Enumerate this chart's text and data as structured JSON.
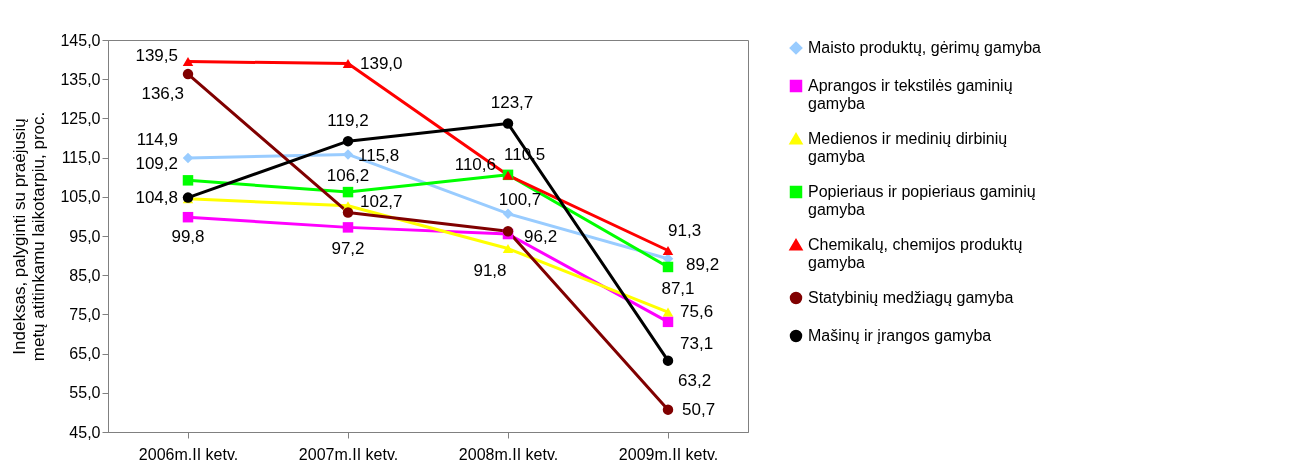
{
  "chart_data": {
    "type": "line",
    "ylabel": "Indeksas, palyginti su praėjusių metų atitinkamu laikotarpiu, proc.",
    "categories": [
      "2006m.II ketv.",
      "2007m.II ketv.",
      "2008m.II ketv.",
      "2009m.II ketv."
    ],
    "ylim": [
      45,
      145
    ],
    "yticks": [
      {
        "value": 45,
        "label": "45,0"
      },
      {
        "value": 55,
        "label": "55,0"
      },
      {
        "value": 65,
        "label": "65,0"
      },
      {
        "value": 75,
        "label": "75,0"
      },
      {
        "value": 85,
        "label": "85,0"
      },
      {
        "value": 95,
        "label": "95,0"
      },
      {
        "value": 105,
        "label": "105,0"
      },
      {
        "value": 115,
        "label": "115,0"
      },
      {
        "value": 125,
        "label": "125,0"
      },
      {
        "value": 135,
        "label": "135,0"
      },
      {
        "value": 145,
        "label": "145,0"
      }
    ],
    "grid": false,
    "legend": "right",
    "series": [
      {
        "name": "Maisto produktų, gėrimų gamyba",
        "color": "#99ccff",
        "marker": "diamond",
        "values": [
          114.9,
          115.8,
          100.7,
          89.2
        ],
        "value_labels": [
          "114,9",
          "115,8",
          "100,7",
          "89,2"
        ]
      },
      {
        "name": "Aprangos ir tekstilės gaminių gamyba",
        "color": "#ff00ff",
        "marker": "square",
        "values": [
          99.8,
          97.2,
          95.5,
          73.1
        ],
        "value_labels": [
          "99,8",
          "97,2",
          null,
          "73,1"
        ]
      },
      {
        "name": "Medienos ir medinių dirbinių gamyba",
        "color": "#ffff00",
        "marker": "triangle",
        "values": [
          104.5,
          102.7,
          91.8,
          75.6
        ],
        "value_labels": [
          null,
          "102,7",
          "91,8",
          "75,6"
        ]
      },
      {
        "name": "Popieriaus ir popieriaus gaminių gamyba",
        "color": "#00ff00",
        "marker": "square",
        "values": [
          109.2,
          106.2,
          110.6,
          87.1
        ],
        "value_labels": [
          "109,2",
          "106,2",
          "110,6",
          "87,1"
        ]
      },
      {
        "name": "Chemikalų, chemijos produktų gamyba",
        "color": "#ff0000",
        "marker": "triangle",
        "values": [
          139.5,
          139.0,
          110.5,
          91.3
        ],
        "value_labels": [
          "139,5",
          "139,0",
          "110,5",
          "91,3"
        ]
      },
      {
        "name": "Statybinių medžiagų gamyba",
        "color": "#800000",
        "marker": "circle",
        "values": [
          136.3,
          101.0,
          96.2,
          50.7
        ],
        "value_labels": [
          "136,3",
          null,
          "96,2",
          "50,7"
        ]
      },
      {
        "name": "Mašinų ir įrangos gamyba",
        "color": "#000000",
        "marker": "circle",
        "values": [
          104.8,
          119.2,
          123.7,
          63.2
        ],
        "value_labels": [
          "104,8",
          "119,2",
          "123,7",
          "63,2"
        ]
      }
    ]
  }
}
